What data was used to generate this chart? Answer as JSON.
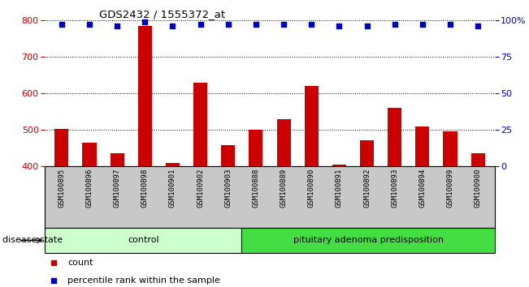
{
  "title": "GDS2432 / 1555372_at",
  "samples": [
    "GSM100895",
    "GSM100896",
    "GSM100897",
    "GSM100898",
    "GSM100901",
    "GSM100902",
    "GSM100903",
    "GSM100888",
    "GSM100889",
    "GSM100890",
    "GSM100891",
    "GSM100892",
    "GSM100893",
    "GSM100894",
    "GSM100899",
    "GSM100900"
  ],
  "counts": [
    503,
    466,
    437,
    783,
    410,
    628,
    458,
    500,
    530,
    620,
    405,
    472,
    560,
    510,
    495,
    437
  ],
  "percentiles": [
    97,
    97,
    96,
    99,
    96,
    97,
    97,
    97,
    97,
    97,
    96,
    96,
    97,
    97,
    97,
    96
  ],
  "groups": [
    {
      "label": "control",
      "start": 0,
      "end": 7,
      "color": "#ccffcc"
    },
    {
      "label": "pituitary adenoma predisposition",
      "start": 7,
      "end": 16,
      "color": "#44dd44"
    }
  ],
  "ylim_left": [
    400,
    800
  ],
  "ylim_right": [
    0,
    100
  ],
  "yticks_left": [
    400,
    500,
    600,
    700,
    800
  ],
  "yticks_right": [
    0,
    25,
    50,
    75,
    100
  ],
  "yright_labels": [
    "0",
    "25",
    "50",
    "75",
    "100%"
  ],
  "bar_color": "#cc0000",
  "dot_color": "#0000cc",
  "bar_width": 0.5,
  "grid_color": "#000000",
  "bg_color": "#ffffff",
  "tick_area_color": "#c8c8c8",
  "legend_count_color": "#cc0000",
  "legend_pct_color": "#0000cc",
  "disease_state_label": "disease state"
}
